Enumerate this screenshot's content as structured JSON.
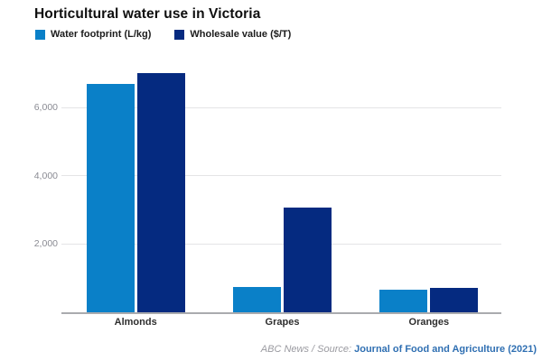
{
  "title": "Horticultural water use in Victoria",
  "legend": {
    "items": [
      {
        "label": "Water footprint (L/kg)",
        "color": "#0a80c8"
      },
      {
        "label": "Wholesale value ($/T)",
        "color": "#052a80"
      }
    ]
  },
  "footer": {
    "credit": "ABC News / Source: ",
    "source_link": "Journal of Food and Agriculture (2021)",
    "link_color": "#2f6fb2"
  },
  "chart_data": {
    "type": "bar",
    "title": "Horticultural water use in Victoria",
    "categories": [
      "Almonds",
      "Grapes",
      "Oranges"
    ],
    "series": [
      {
        "name": "Water footprint (L/kg)",
        "color": "#0a80c8",
        "values": [
          6700,
          740,
          670
        ]
      },
      {
        "name": "Wholesale value ($/T)",
        "color": "#052a80",
        "values": [
          7000,
          3070,
          720
        ]
      }
    ],
    "xlabel": "",
    "ylabel": "",
    "ylim": [
      0,
      7100
    ],
    "yticks": [
      2000,
      4000,
      6000
    ],
    "ytick_labels": [
      "2,000",
      "4,000",
      "6,000"
    ],
    "grid": true,
    "legend_position": "top-left"
  }
}
